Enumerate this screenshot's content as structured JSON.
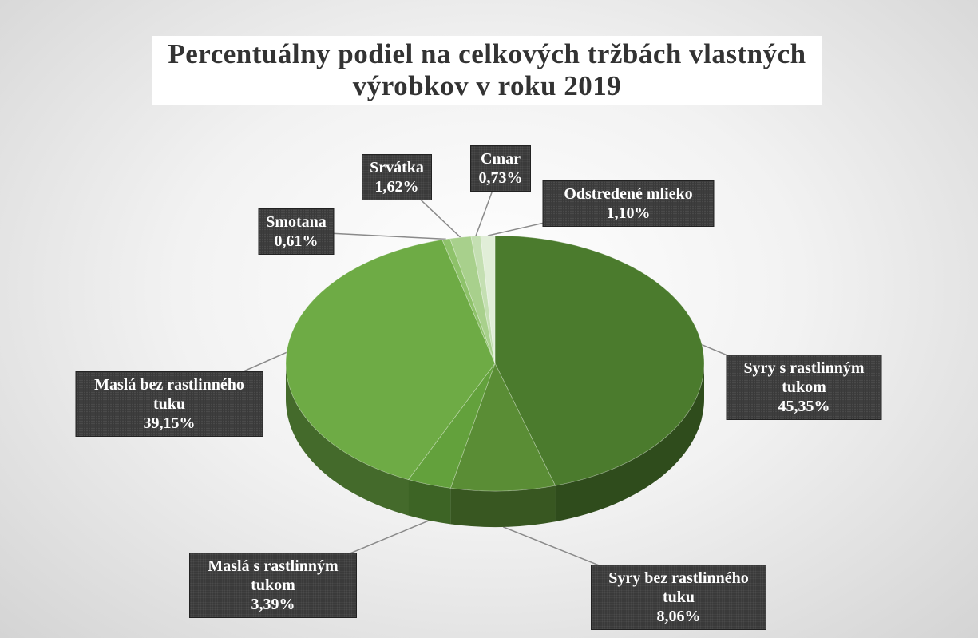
{
  "chart_data": {
    "type": "pie",
    "title": "Percentuálny podiel na celkových tržbách vlastných výrobkov v roku 2019",
    "categories": [
      "Syry s rastlinným tukom",
      "Syry bez rastlinného tuku",
      "Maslá s rastlinným tukom",
      "Maslá bez rastlinného tuku",
      "Smotana",
      "Srvátka",
      "Cmar",
      "Odstredené mlieko"
    ],
    "values": [
      45.35,
      8.06,
      3.39,
      39.15,
      0.61,
      1.62,
      0.73,
      1.1
    ],
    "value_labels": [
      "45,35%",
      "8,06%",
      "3,39%",
      "39,15%",
      "0,61%",
      "1,62%",
      "0,73%",
      "1,10%"
    ],
    "colors": [
      "#4b7b2d",
      "#5a8d35",
      "#63a13c",
      "#6eab45",
      "#8ec26a",
      "#a8d08c",
      "#c4dfb2",
      "#e1eed8"
    ]
  }
}
